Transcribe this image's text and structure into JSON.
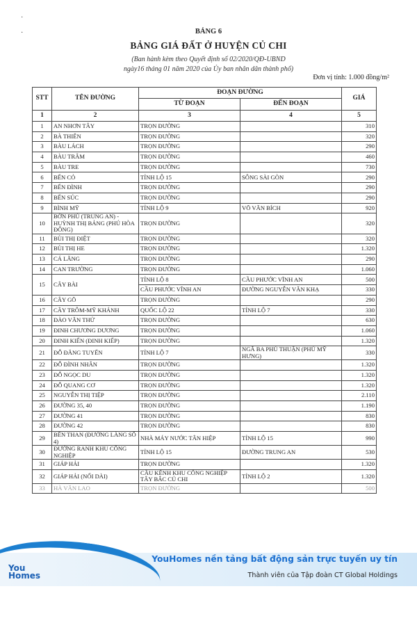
{
  "header": {
    "table_no": "BẢNG 6",
    "title": "BẢNG GIÁ ĐẤT Ở HUYỆN CỦ CHI",
    "subtitle_line1": "(Ban hành kèm theo Quyết định số 02/2020/QĐ-UBND",
    "subtitle_line2": "ngày16 tháng 01 năm 2020 của Ủy ban nhân dân thành phố)",
    "unit": "Đơn vị tính: 1.000 đồng/m²"
  },
  "columns": {
    "stt": "STT",
    "name": "TÊN ĐƯỜNG",
    "segment": "ĐOẠN ĐƯỜNG",
    "from": "TỪ ĐOẠN",
    "to": "ĐẾN ĐOẠN",
    "price": "GIÁ",
    "numbers": [
      "1",
      "2",
      "3",
      "4",
      "5"
    ]
  },
  "rows": [
    {
      "stt": "1",
      "name": "AN NHƠN TÂY",
      "segs": [
        {
          "from": "TRỌN ĐƯỜNG",
          "to": "",
          "price": "310"
        }
      ]
    },
    {
      "stt": "2",
      "name": "BÀ THIÊN",
      "segs": [
        {
          "from": "TRỌN ĐƯỜNG",
          "to": "",
          "price": "320"
        }
      ]
    },
    {
      "stt": "3",
      "name": "BÀU LÁCH",
      "segs": [
        {
          "from": "TRỌN ĐƯỜNG",
          "to": "",
          "price": "290"
        }
      ]
    },
    {
      "stt": "4",
      "name": "BÀU TRÂM",
      "segs": [
        {
          "from": "TRỌN ĐƯỜNG",
          "to": "",
          "price": "460"
        }
      ]
    },
    {
      "stt": "5",
      "name": "BÀU TRE",
      "segs": [
        {
          "from": "TRỌN ĐƯỜNG",
          "to": "",
          "price": "730"
        }
      ]
    },
    {
      "stt": "6",
      "name": "BẾN CỎ",
      "segs": [
        {
          "from": "TỈNH LỘ 15",
          "to": "SÔNG SÀI GÒN",
          "price": "290"
        }
      ]
    },
    {
      "stt": "7",
      "name": "BẾN ĐÌNH",
      "segs": [
        {
          "from": "TRỌN ĐƯỜNG",
          "to": "",
          "price": "290"
        }
      ]
    },
    {
      "stt": "8",
      "name": "BẾN SÚC",
      "segs": [
        {
          "from": "TRỌN ĐƯỜNG",
          "to": "",
          "price": "290"
        }
      ]
    },
    {
      "stt": "9",
      "name": "BÌNH MỸ",
      "segs": [
        {
          "from": "TỈNH LỘ 9",
          "to": "VÕ VĂN BÍCH",
          "price": "920"
        }
      ]
    },
    {
      "stt": "10",
      "name": "BỜN PHỦ (TRUNG AN) - HUỲNH THỊ BẢNG (PHÚ HÒA ĐÔNG)",
      "segs": [
        {
          "from": "TRỌN ĐƯỜNG",
          "to": "",
          "price": "320"
        }
      ]
    },
    {
      "stt": "11",
      "name": "BÙI THỊ ĐIỆT",
      "segs": [
        {
          "from": "TRỌN ĐƯỜNG",
          "to": "",
          "price": "320"
        }
      ]
    },
    {
      "stt": "12",
      "name": "BÙI THỊ HE",
      "segs": [
        {
          "from": "TRỌN ĐƯỜNG",
          "to": "",
          "price": "1.320"
        }
      ]
    },
    {
      "stt": "13",
      "name": "CÁ LĂNG",
      "segs": [
        {
          "from": "TRỌN ĐƯỜNG",
          "to": "",
          "price": "290"
        }
      ]
    },
    {
      "stt": "14",
      "name": "CAN TRƯỜNG",
      "segs": [
        {
          "from": "TRỌN ĐƯỜNG",
          "to": "",
          "price": "1.060"
        }
      ]
    },
    {
      "stt": "15",
      "name": "CÂY BÀI",
      "segs": [
        {
          "from": "TỈNH LỘ 8",
          "to": "CẦU PHƯỚC VĨNH AN",
          "price": "500"
        },
        {
          "from": "CẦU PHƯỚC VĨNH AN",
          "to": "ĐƯỜNG NGUYỄN VĂN KHẠ",
          "price": "330"
        }
      ]
    },
    {
      "stt": "16",
      "name": "CÂY GÕ",
      "segs": [
        {
          "from": "TRỌN ĐƯỜNG",
          "to": "",
          "price": "290"
        }
      ]
    },
    {
      "stt": "17",
      "name": "CÂY TRÔM-MỸ KHÁNH",
      "segs": [
        {
          "from": "QUỐC LỘ 22",
          "to": "TỈNH LỘ 7",
          "price": "330"
        }
      ]
    },
    {
      "stt": "18",
      "name": "ĐÀO VĂN THỬ",
      "segs": [
        {
          "from": "TRỌN ĐƯỜNG",
          "to": "",
          "price": "630"
        }
      ]
    },
    {
      "stt": "19",
      "name": "ĐINH CHƯƠNG DƯƠNG",
      "segs": [
        {
          "from": "TRỌN ĐƯỜNG",
          "to": "",
          "price": "1.060"
        }
      ]
    },
    {
      "stt": "20",
      "name": "ĐINH KIẾN (ĐINH KIẾP)",
      "segs": [
        {
          "from": "TRỌN ĐƯỜNG",
          "to": "",
          "price": "1.320"
        }
      ]
    },
    {
      "stt": "21",
      "name": "ĐỖ ĐĂNG TUYỂN",
      "segs": [
        {
          "from": "TỈNH LỘ 7",
          "to": "NGÃ BA PHÚ THUẬN (PHÚ MỸ HƯNG)",
          "price": "330"
        }
      ]
    },
    {
      "stt": "22",
      "name": "ĐỖ ĐÌNH NHÂN",
      "segs": [
        {
          "from": "TRỌN ĐƯỜNG",
          "to": "",
          "price": "1.320"
        }
      ]
    },
    {
      "stt": "23",
      "name": "ĐỖ NGỌC DU",
      "segs": [
        {
          "from": "TRỌN ĐƯỜNG",
          "to": "",
          "price": "1.320"
        }
      ]
    },
    {
      "stt": "24",
      "name": "ĐỖ QUANG CƠ",
      "segs": [
        {
          "from": "TRỌN ĐƯỜNG",
          "to": "",
          "price": "1.320"
        }
      ]
    },
    {
      "stt": "25",
      "name": "NGUYỄN THỊ TIỆP",
      "segs": [
        {
          "from": "TRỌN ĐƯỜNG",
          "to": "",
          "price": "2.110"
        }
      ]
    },
    {
      "stt": "26",
      "name": "ĐƯỜNG 35, 40",
      "segs": [
        {
          "from": "TRỌN ĐƯỜNG",
          "to": "",
          "price": "1.190"
        }
      ]
    },
    {
      "stt": "27",
      "name": "ĐƯỜNG 41",
      "segs": [
        {
          "from": "TRỌN ĐƯỜNG",
          "to": "",
          "price": "830"
        }
      ]
    },
    {
      "stt": "28",
      "name": "ĐƯỜNG 42",
      "segs": [
        {
          "from": "TRỌN ĐƯỜNG",
          "to": "",
          "price": "830"
        }
      ]
    },
    {
      "stt": "29",
      "name": "BẾN THAN (ĐƯỜNG LÀNG SỐ 4)",
      "segs": [
        {
          "from": "NHÀ MÁY NƯỚC TÂN HIỆP",
          "to": "TỈNH LỘ 15",
          "price": "990"
        }
      ]
    },
    {
      "stt": "30",
      "name": "ĐƯỜNG RANH KHU CÔNG NGHIỆP",
      "segs": [
        {
          "from": "TỈNH LỘ 15",
          "to": "ĐƯỜNG TRUNG AN",
          "price": "530"
        }
      ]
    },
    {
      "stt": "31",
      "name": "GIÁP HẢI",
      "segs": [
        {
          "from": "TRỌN ĐƯỜNG",
          "to": "",
          "price": "1.320"
        }
      ]
    },
    {
      "stt": "32",
      "name": "GIÁP HẢI (NỐI DÀI)",
      "segs": [
        {
          "from": "CẦU KÊNH KHU CÔNG NGHIỆP TÂY BẮC CỦ CHI",
          "to": "TỈNH LỘ 2",
          "price": "1.320"
        }
      ]
    },
    {
      "stt": "33",
      "name": "HÀ VĂN LAO",
      "segs": [
        {
          "from": "TRỌN ĐƯỜNG",
          "to": "",
          "price": "500"
        }
      ]
    }
  ],
  "banner": {
    "logo_text": "YouHomes",
    "tagline": "YouHomes nền tảng bất động sản trực tuyến uy tín",
    "member": "Thành viên của Tập đoàn CT Global Holdings",
    "brand_color": "#1a6fd0"
  }
}
